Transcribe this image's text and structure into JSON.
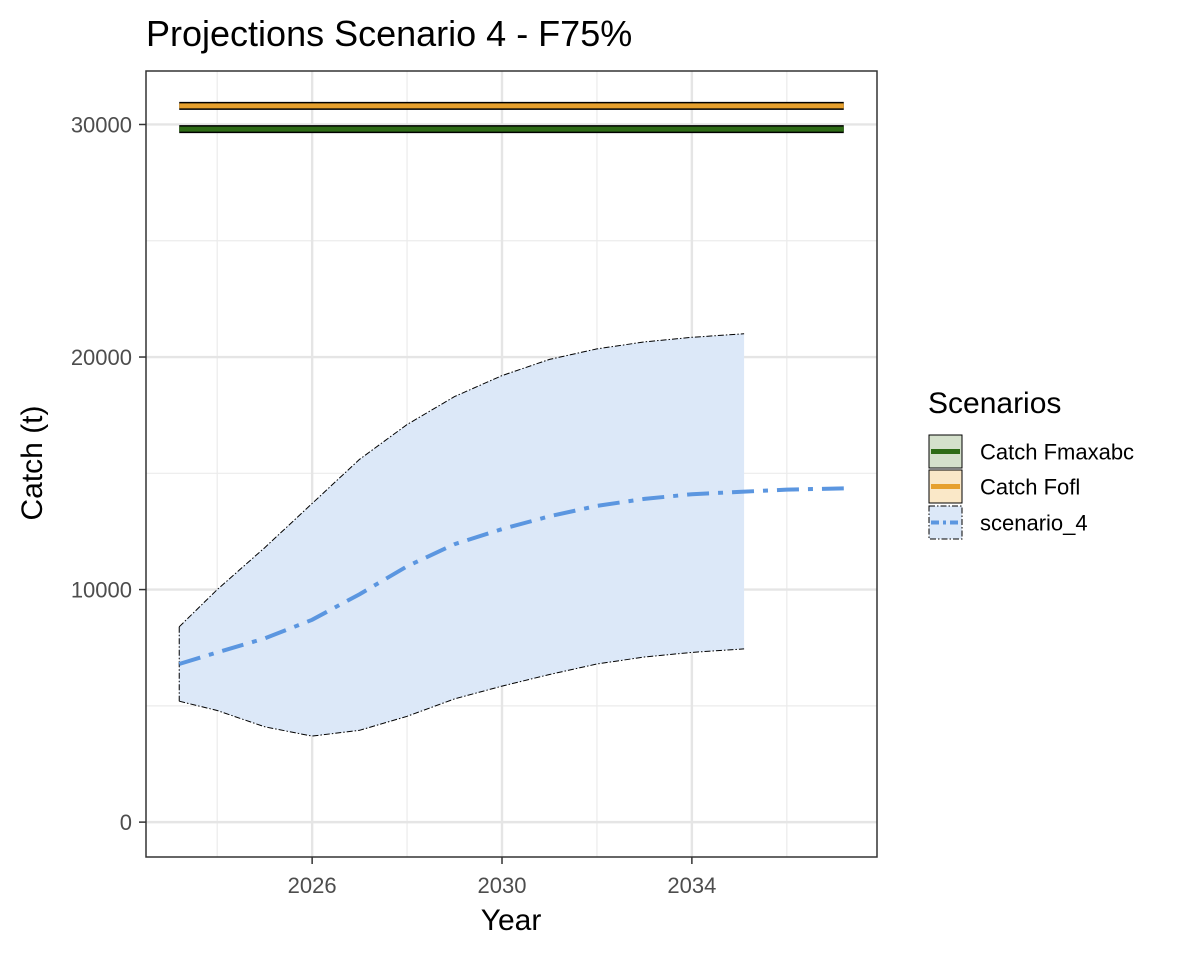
{
  "chart_data": {
    "type": "line",
    "title": "Projections Scenario 4 - F75%",
    "xlabel": "Year",
    "ylabel": "Catch (t)",
    "xlim": [
      2022.5,
      2037.9
    ],
    "ylim": [
      -1500,
      32300
    ],
    "x_ticks": [
      2026,
      2030,
      2034
    ],
    "y_ticks": [
      0,
      10000,
      20000,
      30000
    ],
    "x_minor_ticks": [
      2024,
      2028,
      2032,
      2036
    ],
    "y_minor_ticks": [
      5000,
      15000,
      25000
    ],
    "grid": true,
    "legend": {
      "title": "Scenarios",
      "position": "right",
      "entries": [
        "Catch Fmaxabc",
        "Catch Fofl",
        "scenario_4"
      ]
    },
    "series": [
      {
        "name": "Catch Fmaxabc",
        "kind": "hline",
        "x_range": [
          2023.2,
          2037.2
        ],
        "value": 29800,
        "color": "#2e6b16",
        "fill": "#d4e0cb"
      },
      {
        "name": "Catch Fofl",
        "kind": "hline",
        "x_range": [
          2023.2,
          2037.2
        ],
        "value": 30800,
        "color": "#e6a02e",
        "fill": "#fae8c8"
      },
      {
        "name": "scenario_4",
        "kind": "line",
        "line_style": "dashdot",
        "color": "#5b96e0",
        "ribbon_color": "#dce8f8",
        "x": [
          2023.2,
          2024,
          2025,
          2026,
          2027,
          2028,
          2029,
          2030,
          2031,
          2032,
          2033,
          2034,
          2035,
          2036,
          2037.2
        ],
        "values": [
          6800,
          7300,
          7900,
          8700,
          9800,
          11000,
          11950,
          12600,
          13150,
          13600,
          13900,
          14100,
          14200,
          14300,
          14350
        ],
        "ribbon_x": [
          2023.2,
          2024,
          2025,
          2026,
          2027,
          2028,
          2029,
          2030,
          2031,
          2032,
          2033,
          2034,
          2035.1
        ],
        "ribbon_upper": [
          8400,
          10000,
          11800,
          13700,
          15600,
          17100,
          18300,
          19200,
          19900,
          20350,
          20650,
          20850,
          21000
        ],
        "ribbon_lower": [
          5200,
          4800,
          4100,
          3700,
          3950,
          4550,
          5300,
          5850,
          6350,
          6800,
          7100,
          7300,
          7450
        ]
      }
    ]
  }
}
